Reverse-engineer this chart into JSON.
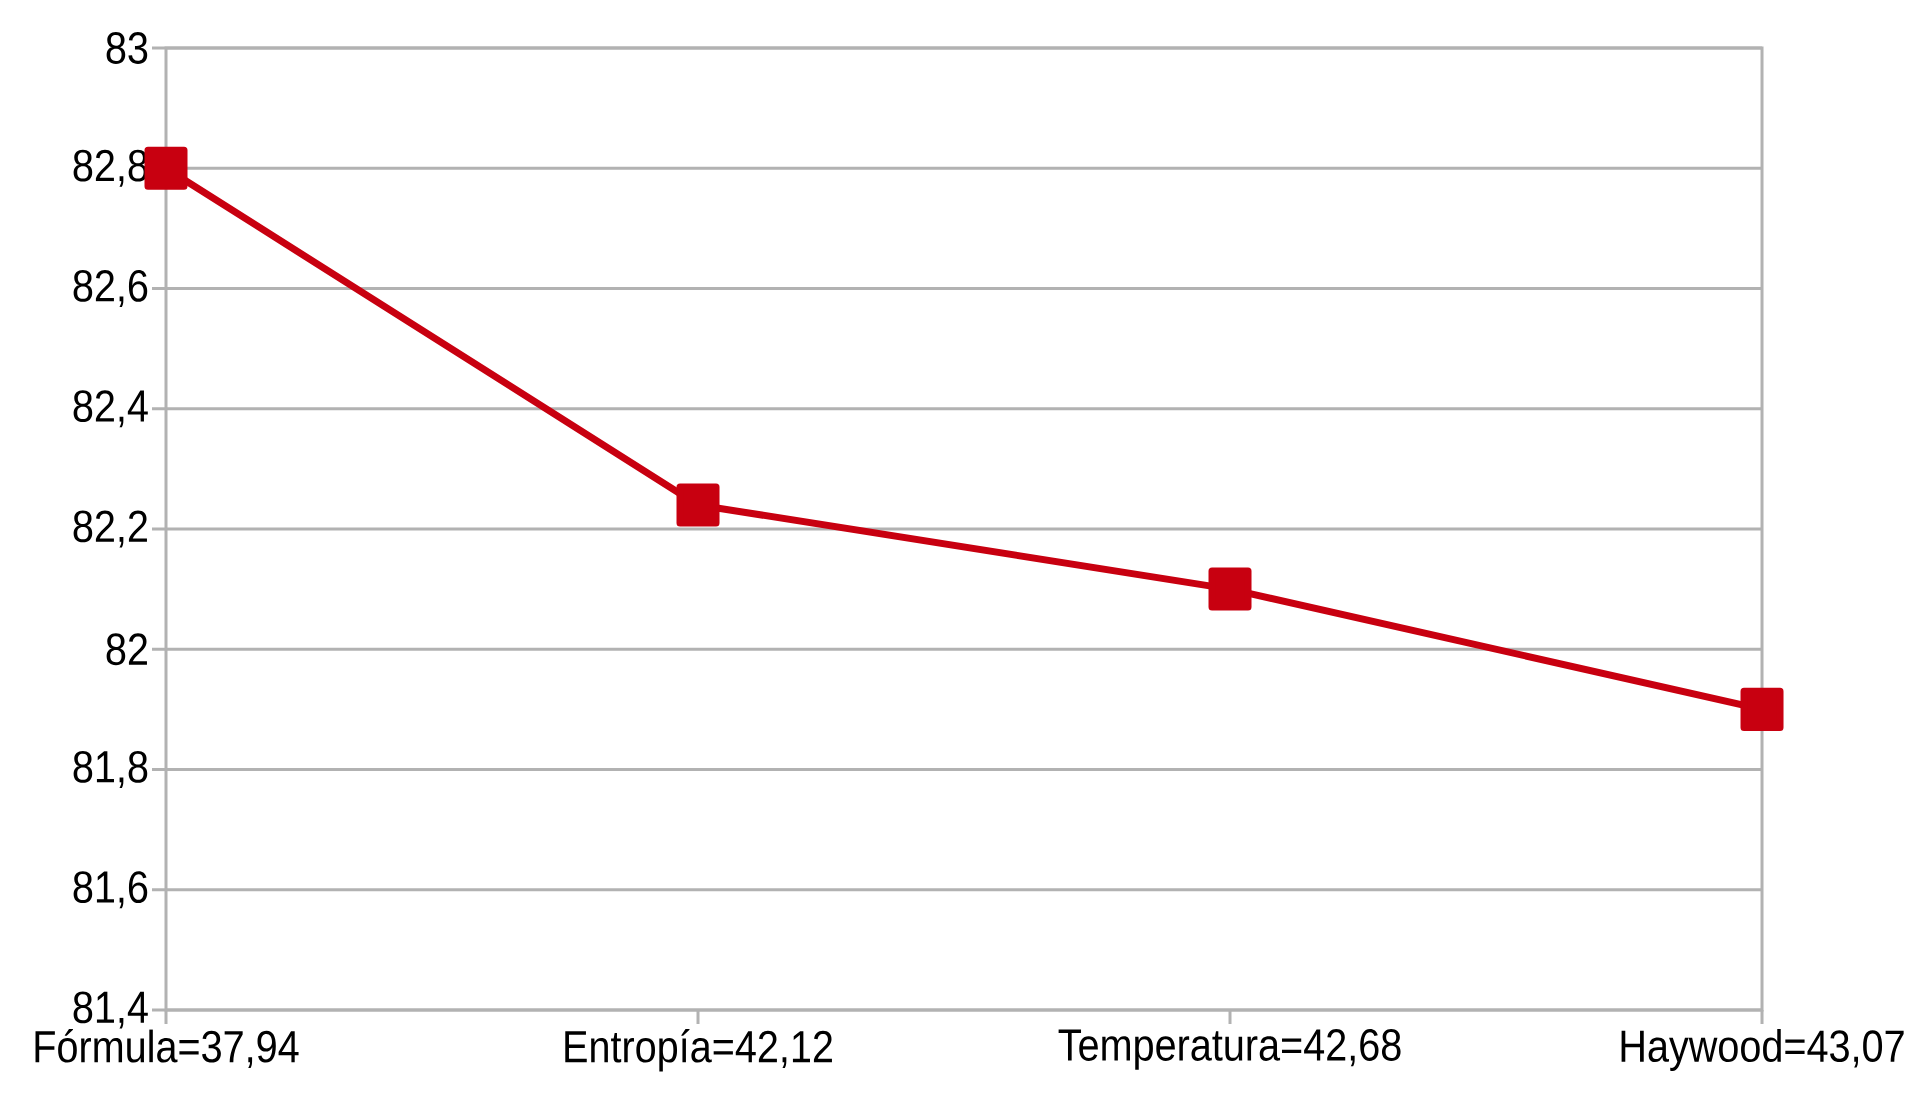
{
  "chart_data": {
    "type": "line",
    "categories": [
      "Fórmula=37,94",
      "Entropía=42,12",
      "Temperatura=42,68",
      "Haywood=43,07"
    ],
    "series": [
      {
        "color": "#c80010",
        "values": [
          82.8,
          82.24,
          82.1,
          81.9
        ]
      }
    ],
    "ylim": [
      81.4,
      83
    ],
    "yticks": [
      {
        "value": 81.4,
        "label": "81,4"
      },
      {
        "value": 81.6,
        "label": "81,6"
      },
      {
        "value": 81.8,
        "label": "81,8"
      },
      82,
      {
        "value": 82.2,
        "label": "82,2"
      },
      {
        "value": 82.4,
        "label": "82,4"
      },
      {
        "value": 82.6,
        "label": "82,6"
      },
      {
        "value": 82.8,
        "label": "82,8"
      },
      83
    ],
    "grid": "y",
    "marker": "square",
    "line_style": "solid"
  }
}
